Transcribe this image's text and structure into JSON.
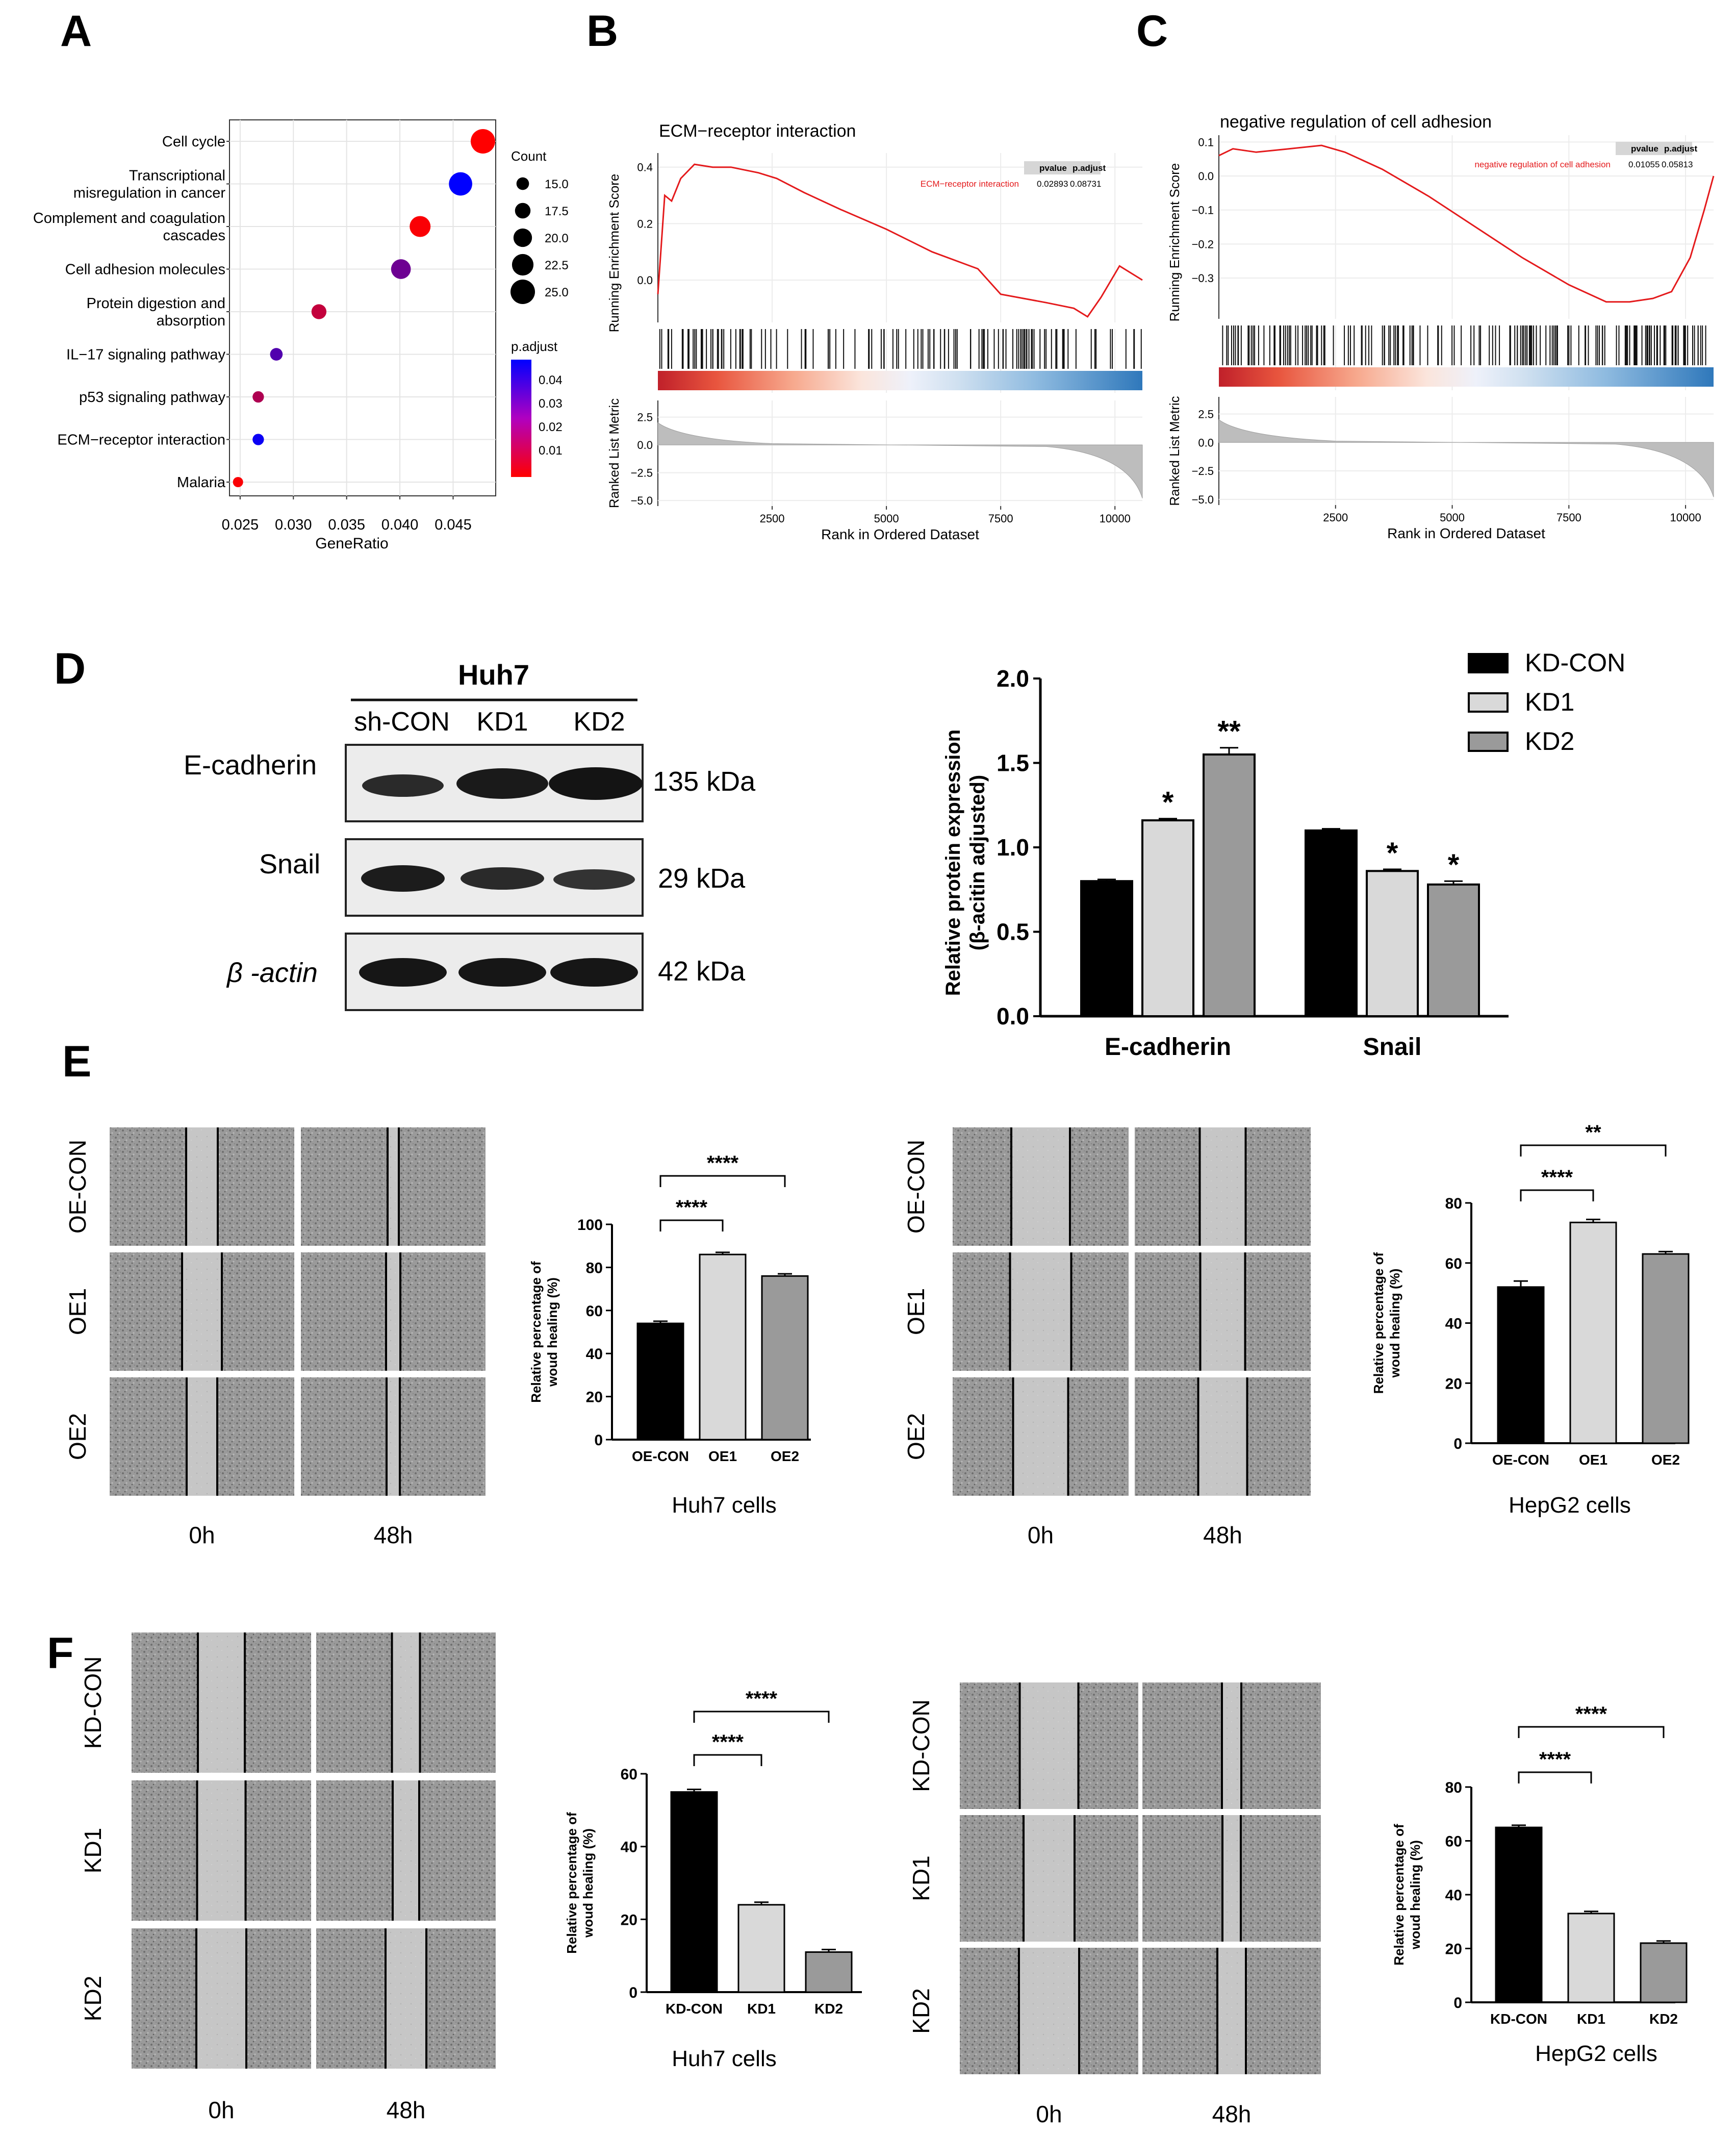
{
  "panel_letters": {
    "A": "A",
    "B": "B",
    "C": "C",
    "D": "D",
    "E": "E",
    "F": "F"
  },
  "colors": {
    "red": "#ff0000",
    "blue": "#0000ff",
    "gsea_line": "#e41a1c",
    "bar_black": "#000000",
    "bar_light": "#d9d9d9",
    "bar_mid": "#9a9a9a"
  },
  "chart_data": [
    {
      "id": "A",
      "type": "scatter",
      "title": "",
      "categories": [
        "Cell cycle",
        "Transcriptional misregulation in cancer",
        "Complement and coagulation cascades",
        "Cell adhesion molecules",
        "Protein digestion and absorption",
        "IL−17 signaling pathway",
        "p53 signaling pathway",
        "ECM−receptor interaction",
        "Malaria"
      ],
      "category_lines": [
        [
          "Cell cycle"
        ],
        [
          "Transcriptional",
          "misregulation in cancer"
        ],
        [
          "Complement and coagulation",
          "cascades"
        ],
        [
          "Cell adhesion molecules"
        ],
        [
          "Protein digestion and",
          "absorption"
        ],
        [
          "IL−17 signaling pathway"
        ],
        [
          "p53 signaling pathway"
        ],
        [
          "ECM−receptor interaction"
        ],
        [
          "Malaria"
        ]
      ],
      "gene_ratio": [
        0.0478,
        0.0457,
        0.0419,
        0.0401,
        0.0324,
        0.0284,
        0.0267,
        0.0267,
        0.0248
      ],
      "count": [
        25,
        24,
        22,
        21,
        17,
        15,
        14,
        14,
        13
      ],
      "p_adjust": [
        0.001,
        0.048,
        0.002,
        0.028,
        0.012,
        0.033,
        0.016,
        0.046,
        0.002
      ],
      "xlabel": "GeneRatio",
      "xlim": [
        0.024,
        0.049
      ],
      "xticks": [
        "0.025",
        "0.030",
        "0.035",
        "0.040",
        "0.045"
      ],
      "size_legend": {
        "title": "Count",
        "values": [
          "15.0",
          "17.5",
          "20.0",
          "22.5",
          "25.0"
        ]
      },
      "color_legend": {
        "title": "p.adjust",
        "values": [
          "0.04",
          "0.03",
          "0.02",
          "0.01"
        ]
      }
    },
    {
      "id": "B",
      "type": "line",
      "title": "ECM−receptor interaction",
      "ylabel": "Running Enrichment Score",
      "yticks": [
        "0.4",
        "0.2",
        "0.0"
      ],
      "ylim": [
        -0.15,
        0.45
      ],
      "es_curve": [
        [
          0,
          -0.05
        ],
        [
          150,
          0.3
        ],
        [
          300,
          0.28
        ],
        [
          500,
          0.36
        ],
        [
          800,
          0.41
        ],
        [
          1200,
          0.4
        ],
        [
          1600,
          0.4
        ],
        [
          2200,
          0.38
        ],
        [
          2600,
          0.36
        ],
        [
          3200,
          0.31
        ],
        [
          4000,
          0.25
        ],
        [
          5000,
          0.18
        ],
        [
          6000,
          0.1
        ],
        [
          7000,
          0.04
        ],
        [
          7500,
          -0.05
        ],
        [
          8500,
          -0.08
        ],
        [
          9100,
          -0.1
        ],
        [
          9400,
          -0.13
        ],
        [
          9700,
          -0.06
        ],
        [
          10100,
          0.05
        ],
        [
          10600,
          0.0
        ]
      ],
      "table": {
        "headers": [
          "pvalue",
          "p.adjust"
        ],
        "row_label": "ECM−receptor interaction",
        "values": [
          "0.02893",
          "0.08731"
        ]
      },
      "metric_label": "Ranked List Metric",
      "metric_ticks": [
        "2.5",
        "0.0",
        "−2.5",
        "−5.0"
      ],
      "xlabel": "Rank in Ordered Dataset",
      "xticks": [
        "2500",
        "5000",
        "7500",
        "10000"
      ],
      "xlim": [
        0,
        10600
      ]
    },
    {
      "id": "C",
      "type": "line",
      "title": "negative regulation of cell adhesion",
      "ylabel": "Running Enrichment Score",
      "yticks": [
        "0.1",
        "0.0",
        "−0.1",
        "−0.2",
        "−0.3"
      ],
      "ylim": [
        -0.42,
        0.12
      ],
      "es_curve": [
        [
          0,
          0.06
        ],
        [
          300,
          0.08
        ],
        [
          800,
          0.07
        ],
        [
          1500,
          0.08
        ],
        [
          2200,
          0.09
        ],
        [
          2700,
          0.07
        ],
        [
          3500,
          0.02
        ],
        [
          4500,
          -0.06
        ],
        [
          5500,
          -0.15
        ],
        [
          6500,
          -0.24
        ],
        [
          7500,
          -0.32
        ],
        [
          8300,
          -0.37
        ],
        [
          8800,
          -0.37
        ],
        [
          9300,
          -0.36
        ],
        [
          9700,
          -0.34
        ],
        [
          10100,
          -0.24
        ],
        [
          10400,
          -0.1
        ],
        [
          10600,
          0.0
        ]
      ],
      "table": {
        "headers": [
          "pvalue",
          "p.adjust"
        ],
        "row_label": "negative regulation of cell adhesion",
        "values": [
          "0.01055",
          "0.05813"
        ]
      },
      "metric_label": "Ranked List Metric",
      "metric_ticks": [
        "2.5",
        "0.0",
        "−2.5",
        "−5.0"
      ],
      "xlabel": "Rank in Ordered Dataset",
      "xticks": [
        "2500",
        "5000",
        "7500",
        "10000"
      ],
      "xlim": [
        0,
        10600
      ]
    },
    {
      "id": "D",
      "type": "bar",
      "categories": [
        "E-cadherin",
        "Snail"
      ],
      "series": [
        {
          "name": "KD-CON",
          "values": [
            0.8,
            1.1
          ],
          "errors": [
            0.01,
            0.01
          ],
          "sig": [
            "",
            ""
          ]
        },
        {
          "name": "KD1",
          "values": [
            1.16,
            0.86
          ],
          "errors": [
            0.01,
            0.01
          ],
          "sig": [
            "*",
            "*"
          ]
        },
        {
          "name": "KD2",
          "values": [
            1.55,
            0.78
          ],
          "errors": [
            0.04,
            0.02
          ],
          "sig": [
            "**",
            "*"
          ]
        }
      ],
      "ylabel_lines": [
        "Relative protein expression",
        "(β-acitin adjusted)"
      ],
      "ylim": [
        0,
        2.0
      ],
      "yticks": [
        "0.0",
        "0.5",
        "1.0",
        "1.5",
        "2.0"
      ]
    },
    {
      "id": "E1",
      "type": "bar",
      "categories": [
        "OE-CON",
        "OE1",
        "OE2"
      ],
      "values": [
        54,
        86,
        76
      ],
      "errors": [
        1,
        1,
        1
      ],
      "ylim": [
        0,
        100
      ],
      "yticks": [
        "0",
        "20",
        "40",
        "60",
        "80",
        "100"
      ],
      "ylabel_lines": [
        "Relative percentage of",
        "woud healing (%)"
      ],
      "comparisons": [
        {
          "from": 0,
          "to": 1,
          "label": "****"
        },
        {
          "from": 0,
          "to": 2,
          "label": "****"
        }
      ],
      "caption": "Huh7 cells"
    },
    {
      "id": "E2",
      "type": "bar",
      "categories": [
        "OE-CON",
        "OE1",
        "OE2"
      ],
      "values": [
        52,
        73.5,
        63
      ],
      "errors": [
        2,
        1,
        0.8
      ],
      "ylim": [
        0,
        80
      ],
      "yticks": [
        "0",
        "20",
        "40",
        "60",
        "80"
      ],
      "ylabel_lines": [
        "Relative percentage of",
        "woud healing (%)"
      ],
      "comparisons": [
        {
          "from": 0,
          "to": 1,
          "label": "****"
        },
        {
          "from": 0,
          "to": 2,
          "label": "**"
        }
      ],
      "caption": "HepG2 cells"
    },
    {
      "id": "F1",
      "type": "bar",
      "categories": [
        "KD-CON",
        "KD1",
        "KD2"
      ],
      "values": [
        55,
        24,
        11
      ],
      "errors": [
        0.7,
        0.7,
        0.7
      ],
      "ylim": [
        0,
        60
      ],
      "yticks": [
        "0",
        "20",
        "40",
        "60"
      ],
      "ylabel_lines": [
        "Relative percentage of",
        "woud healing (%)"
      ],
      "comparisons": [
        {
          "from": 0,
          "to": 1,
          "label": "****"
        },
        {
          "from": 0,
          "to": 2,
          "label": "****"
        }
      ],
      "caption": "Huh7 cells"
    },
    {
      "id": "F2",
      "type": "bar",
      "categories": [
        "KD-CON",
        "KD1",
        "KD2"
      ],
      "values": [
        65,
        33,
        22
      ],
      "errors": [
        0.8,
        0.8,
        0.8
      ],
      "ylim": [
        0,
        80
      ],
      "yticks": [
        "0",
        "20",
        "40",
        "60",
        "80"
      ],
      "ylabel_lines": [
        "Relative percentage of",
        "woud healing (%)"
      ],
      "comparisons": [
        {
          "from": 0,
          "to": 1,
          "label": "****"
        },
        {
          "from": 0,
          "to": 2,
          "label": "****"
        }
      ],
      "caption": "HepG2 cells"
    }
  ],
  "western_blot": {
    "cell_line": "Huh7",
    "lanes": [
      "sh-CON",
      "KD1",
      "KD2"
    ],
    "proteins": [
      "E-cadherin",
      "Snail",
      "β -actin"
    ],
    "sizes": [
      "135 kDa",
      "29 kDa",
      "42 kDa"
    ]
  },
  "wound_E": {
    "rows": [
      "OE-CON",
      "OE1",
      "OE2"
    ],
    "times": [
      "0h",
      "48h"
    ]
  },
  "wound_F": {
    "rows": [
      "KD-CON",
      "KD1",
      "KD2"
    ],
    "times": [
      "0h",
      "48h"
    ]
  }
}
